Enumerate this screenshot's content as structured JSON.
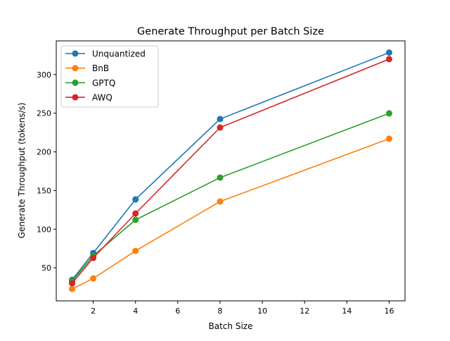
{
  "chart_data": {
    "type": "line",
    "title": "Generate Throughput per Batch Size",
    "xlabel": "Batch Size",
    "ylabel": "Generate Throughput (tokens/s)",
    "xlim": [
      0.25,
      16.75
    ],
    "ylim": [
      7.3,
      343.6
    ],
    "xticks": [
      2,
      4,
      6,
      8,
      10,
      12,
      14,
      16
    ],
    "yticks": [
      50,
      100,
      150,
      200,
      250,
      300
    ],
    "grid": false,
    "legend_placement": "upper-left",
    "x": [
      1,
      2,
      4,
      8,
      16
    ],
    "series": [
      {
        "name": "Unquantized",
        "color": "#1f77b4",
        "values": [
          34.5,
          69.2,
          138.5,
          242.5,
          328.5
        ]
      },
      {
        "name": "BnB",
        "color": "#ff7f0e",
        "values": [
          22.6,
          36.3,
          71.9,
          135.8,
          217.0
        ]
      },
      {
        "name": "GPTQ",
        "color": "#2ca02c",
        "values": [
          32.7,
          65.5,
          112.0,
          166.7,
          249.8
        ]
      },
      {
        "name": "AWQ",
        "color": "#d62728",
        "values": [
          30.0,
          62.8,
          120.3,
          231.5,
          320.0
        ]
      }
    ]
  }
}
